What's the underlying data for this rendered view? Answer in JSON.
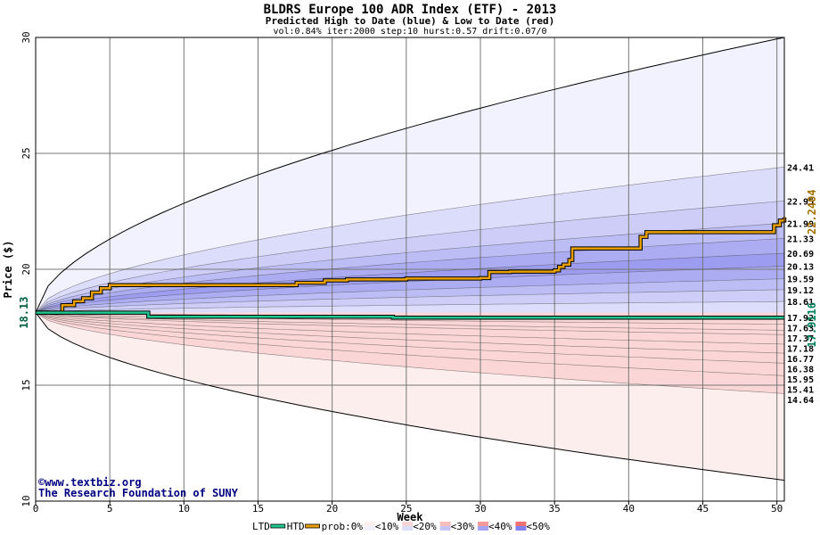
{
  "chart_data": {
    "type": "area",
    "title": "BLDRS Europe 100 ADR Index (ETF) - 2013",
    "subtitle": "Predicted High to Date (blue) &  Low to Date (red)",
    "params": "vol:0.84% iter:2000 step:10 hurst:0.57 drift:0.07/0",
    "xlabel": "Week",
    "ylabel": "Price ($)",
    "xlim": [
      0,
      50.5
    ],
    "ylim": [
      10,
      30
    ],
    "x_ticks": [
      0,
      5,
      10,
      15,
      20,
      25,
      30,
      35,
      40,
      45,
      50
    ],
    "y_ticks": [
      10,
      15,
      20,
      25,
      30
    ],
    "grid": true,
    "start_price": 18.13,
    "start_label": "18.13",
    "htd_end_value": 22.2404,
    "htd_end_label": "22.2404",
    "ltd_end_value": 17.9116,
    "ltd_end_label": "17.9116",
    "envelope": {
      "upper": 30.0,
      "lower": 10.9
    },
    "upper_bands": [
      24.41,
      22.95,
      21.99,
      21.33,
      20.69,
      20.13,
      19.59,
      19.12,
      18.61
    ],
    "lower_bands": [
      17.92,
      17.63,
      17.37,
      17.18,
      16.77,
      16.38,
      15.95,
      15.41,
      14.64
    ],
    "band_labels": [
      "24.41",
      "22.95",
      "21.99",
      "21.33",
      "20.69",
      "20.13",
      "19.59",
      "19.12",
      "18.61",
      "17.92",
      "17.63",
      "17.37",
      "17.18",
      "16.77",
      "16.38",
      "15.95",
      "15.41",
      "14.64"
    ],
    "series": [
      {
        "name": "HTD",
        "color": "#e8a000",
        "x": [
          0,
          1.2,
          1.8,
          2.6,
          3.2,
          3.8,
          4.4,
          5.0,
          10,
          17,
          17.6,
          19.5,
          21,
          25,
          30,
          30.6,
          32,
          35,
          35.3,
          35.6,
          36,
          36.2,
          40.5,
          40.8,
          41.2,
          49.5,
          49.8,
          50.2,
          50.5
        ],
        "y": [
          18.13,
          18.13,
          18.45,
          18.62,
          18.75,
          19.0,
          19.18,
          19.32,
          19.32,
          19.32,
          19.42,
          19.52,
          19.56,
          19.6,
          19.62,
          19.88,
          19.9,
          19.95,
          20.1,
          20.2,
          20.4,
          20.9,
          20.9,
          21.4,
          21.6,
          21.6,
          21.9,
          22.1,
          22.2404
        ]
      },
      {
        "name": "LTD",
        "color": "#20c890",
        "x": [
          0,
          7.5,
          7.6,
          24,
          24.1,
          50.5
        ],
        "y": [
          18.13,
          18.13,
          17.95,
          17.95,
          17.9116,
          17.9116
        ]
      }
    ],
    "legend": {
      "position": "bottom-center",
      "items": [
        {
          "label": "LTD",
          "kind": "line",
          "color": "#20c890"
        },
        {
          "label": "HTD",
          "kind": "line",
          "color": "#e8a000"
        },
        {
          "label": "prob:0%",
          "kind": "text"
        },
        {
          "label": "<10%",
          "kind": "swatch",
          "colors": [
            "#fff0ee",
            "#f0f0ff"
          ]
        },
        {
          "label": "<20%",
          "kind": "swatch",
          "colors": [
            "#fbd6d6",
            "#dcdcfb"
          ]
        },
        {
          "label": "<30%",
          "kind": "swatch",
          "colors": [
            "#f7bdbd",
            "#c4c4f7"
          ]
        },
        {
          "label": "<40%",
          "kind": "swatch",
          "colors": [
            "#f39a9a",
            "#a4a4f3"
          ]
        },
        {
          "label": "<50%",
          "kind": "swatch",
          "colors": [
            "#ee7070",
            "#8080ee"
          ]
        }
      ]
    },
    "credit": [
      "©www.textbiz.org",
      "The Research Foundation of SUNY"
    ],
    "colors": {
      "blue_bands": [
        "#f2f2fe",
        "#dcdcfb",
        "#cdcdf8",
        "#bdbdf6",
        "#acacf3",
        "#9c9cf0",
        "#acacf3",
        "#bdbdf6",
        "#cdcdf8",
        "#dcdcfb"
      ],
      "red_bands": [
        "#fdeeee",
        "#fbd6d6",
        "#f8c6c6",
        "#f5b2b2",
        "#f29c9c",
        "#ee8686",
        "#f29c9c",
        "#f5b2b2",
        "#f8c6c6",
        "#fbd6d6"
      ],
      "htd_label": "#a07000",
      "ltd_label": "#008060",
      "start_label": "#006040",
      "credit": "#000080"
    }
  }
}
